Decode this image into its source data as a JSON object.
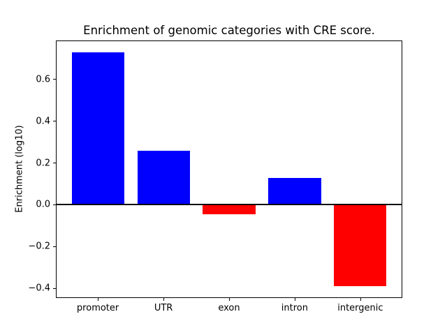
{
  "figure": {
    "background_color": "#ffffff",
    "spine_color": "#000000"
  },
  "chart_data": {
    "type": "bar",
    "title": "Enrichment of genomic categories with CRE score.",
    "xlabel": "",
    "ylabel": "Enrichment (log10)",
    "categories": [
      "promoter",
      "UTR",
      "exon",
      "intron",
      "intergenic"
    ],
    "values": [
      0.73,
      0.26,
      -0.045,
      0.13,
      -0.39
    ],
    "bar_colors": [
      "#0000ff",
      "#0000ff",
      "#ff0000",
      "#0000ff",
      "#ff0000"
    ],
    "positive_color": "#0000ff",
    "negative_color": "#ff0000",
    "bar_width": 0.8,
    "yticks": [
      0.6,
      0.4,
      0.2,
      0.0,
      -0.2,
      -0.4
    ],
    "ytick_labels": [
      "0.6",
      "0.4",
      "0.2",
      "0.0",
      "−0.2",
      "−0.4"
    ],
    "ylim": [
      -0.446,
      0.786
    ],
    "xlim": [
      -0.64,
      4.64
    ],
    "zero_line": true,
    "grid": false,
    "legend_position": "none"
  }
}
